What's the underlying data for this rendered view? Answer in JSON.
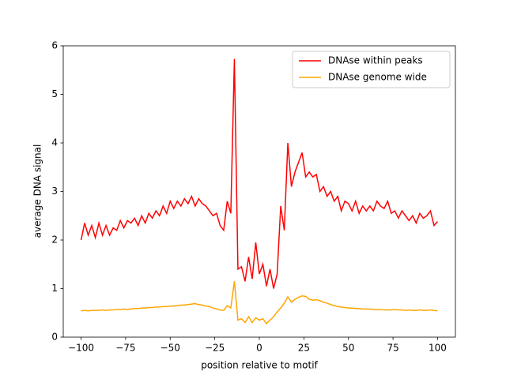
{
  "chart_data": {
    "type": "line",
    "xlabel": "position relative to motif",
    "ylabel": "average DNA signal",
    "x": [
      -100,
      -98,
      -96,
      -94,
      -92,
      -90,
      -88,
      -86,
      -84,
      -82,
      -80,
      -78,
      -76,
      -74,
      -72,
      -70,
      -68,
      -66,
      -64,
      -62,
      -60,
      -58,
      -56,
      -54,
      -52,
      -50,
      -48,
      -46,
      -44,
      -42,
      -40,
      -38,
      -36,
      -34,
      -32,
      -30,
      -28,
      -26,
      -24,
      -22,
      -20,
      -18,
      -16,
      -14,
      -12,
      -10,
      -8,
      -6,
      -4,
      -2,
      0,
      2,
      4,
      6,
      8,
      10,
      12,
      14,
      16,
      18,
      20,
      22,
      24,
      26,
      28,
      30,
      32,
      34,
      36,
      38,
      40,
      42,
      44,
      46,
      48,
      50,
      52,
      54,
      56,
      58,
      60,
      62,
      64,
      66,
      68,
      70,
      72,
      74,
      76,
      78,
      80,
      82,
      84,
      86,
      88,
      90,
      92,
      94,
      96,
      98,
      100
    ],
    "series": [
      {
        "name": "DNAse within peaks",
        "color": "#ff0000",
        "values": [
          2.0,
          2.35,
          2.1,
          2.3,
          2.05,
          2.35,
          2.1,
          2.3,
          2.1,
          2.25,
          2.2,
          2.4,
          2.25,
          2.4,
          2.35,
          2.45,
          2.3,
          2.5,
          2.35,
          2.55,
          2.45,
          2.6,
          2.5,
          2.7,
          2.55,
          2.8,
          2.65,
          2.8,
          2.7,
          2.85,
          2.75,
          2.9,
          2.7,
          2.85,
          2.75,
          2.7,
          2.6,
          2.5,
          2.55,
          2.3,
          2.2,
          2.8,
          2.55,
          5.73,
          1.4,
          1.45,
          1.15,
          1.65,
          1.2,
          1.95,
          1.3,
          1.5,
          1.05,
          1.4,
          1.0,
          1.3,
          2.7,
          2.2,
          4.0,
          3.1,
          3.4,
          3.6,
          3.8,
          3.3,
          3.4,
          3.3,
          3.35,
          3.0,
          3.1,
          2.9,
          3.0,
          2.8,
          2.9,
          2.6,
          2.8,
          2.75,
          2.6,
          2.8,
          2.55,
          2.7,
          2.6,
          2.7,
          2.6,
          2.8,
          2.7,
          2.65,
          2.8,
          2.55,
          2.6,
          2.45,
          2.6,
          2.5,
          2.4,
          2.5,
          2.35,
          2.55,
          2.45,
          2.5,
          2.6,
          2.3,
          2.38
        ]
      },
      {
        "name": "DNAse genome wide",
        "color": "#ffa500",
        "values": [
          0.54,
          0.55,
          0.54,
          0.55,
          0.55,
          0.55,
          0.56,
          0.55,
          0.56,
          0.56,
          0.57,
          0.57,
          0.58,
          0.57,
          0.58,
          0.59,
          0.59,
          0.6,
          0.6,
          0.61,
          0.61,
          0.62,
          0.62,
          0.63,
          0.63,
          0.64,
          0.64,
          0.65,
          0.66,
          0.66,
          0.67,
          0.68,
          0.69,
          0.67,
          0.66,
          0.64,
          0.63,
          0.6,
          0.58,
          0.56,
          0.55,
          0.65,
          0.6,
          1.15,
          0.35,
          0.38,
          0.3,
          0.42,
          0.3,
          0.4,
          0.35,
          0.38,
          0.28,
          0.35,
          0.42,
          0.52,
          0.6,
          0.7,
          0.83,
          0.72,
          0.78,
          0.82,
          0.85,
          0.84,
          0.78,
          0.76,
          0.77,
          0.75,
          0.72,
          0.7,
          0.67,
          0.65,
          0.63,
          0.62,
          0.61,
          0.6,
          0.6,
          0.59,
          0.59,
          0.58,
          0.58,
          0.58,
          0.57,
          0.57,
          0.57,
          0.56,
          0.56,
          0.56,
          0.57,
          0.56,
          0.56,
          0.55,
          0.56,
          0.55,
          0.55,
          0.56,
          0.55,
          0.55,
          0.56,
          0.55,
          0.54
        ]
      }
    ],
    "xlim": [
      -110,
      110
    ],
    "xticks": [
      {
        "value": -100,
        "label": "−100"
      },
      {
        "value": -75,
        "label": "−75"
      },
      {
        "value": -50,
        "label": "−50"
      },
      {
        "value": -25,
        "label": "−25"
      },
      0,
      25,
      50,
      75,
      100
    ],
    "ylim": [
      0,
      6
    ],
    "yticks": [
      0,
      1,
      2,
      3,
      4,
      5,
      6
    ],
    "legend": "upper right"
  }
}
